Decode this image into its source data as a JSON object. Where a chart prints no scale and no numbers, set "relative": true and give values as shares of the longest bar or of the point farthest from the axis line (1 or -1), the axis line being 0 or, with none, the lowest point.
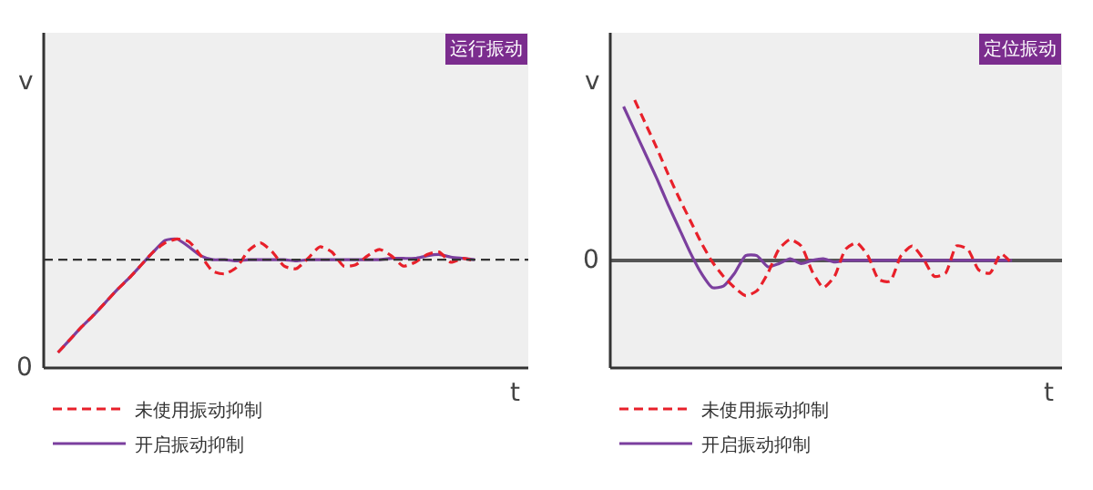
{
  "chart_data": [
    {
      "type": "line",
      "title": "运行振动",
      "xlabel": "t",
      "ylabel": "v",
      "annotations": [
        "0"
      ],
      "relative": true,
      "legend": "bottom",
      "grid": false,
      "marker": "none",
      "categories": [
        null,
        null,
        null,
        null,
        null,
        null,
        null,
        null,
        null,
        null,
        null,
        null,
        null,
        null,
        null,
        null,
        null,
        null,
        null,
        null,
        null,
        null,
        null,
        null,
        null,
        null,
        null,
        null,
        null,
        null,
        null,
        null,
        null,
        null,
        null,
        null
      ],
      "ref_lines": [
        {
          "axis": "y",
          "value": 0.84,
          "color": "#333333",
          "line_style": "dashed"
        }
      ],
      "series": [
        {
          "name": "未使用振动抑制",
          "color": "#e8202a",
          "line_style": "dashed",
          "values": [
            0.12,
            0.22,
            0.32,
            0.41,
            0.51,
            0.61,
            0.7,
            0.8,
            0.9,
            0.97,
            1.0,
            0.98,
            0.87,
            0.75,
            0.73,
            0.78,
            0.91,
            0.97,
            0.9,
            0.79,
            0.77,
            0.85,
            0.94,
            0.9,
            0.79,
            0.8,
            0.87,
            0.92,
            0.87,
            0.79,
            0.82,
            0.88,
            0.9,
            0.82,
            0.85,
            0.83
          ]
        },
        {
          "name": "开启振动抑制",
          "color": "#7b3f9e",
          "line_style": "solid",
          "values": [
            0.12,
            0.22,
            0.32,
            0.41,
            0.51,
            0.61,
            0.7,
            0.8,
            0.9,
            0.99,
            1.0,
            0.94,
            0.87,
            0.84,
            0.84,
            0.83,
            0.84,
            0.84,
            0.84,
            0.84,
            0.83,
            0.84,
            0.84,
            0.84,
            0.84,
            0.84,
            0.84,
            0.84,
            0.85,
            0.85,
            0.85,
            0.87,
            0.88,
            0.86,
            0.85,
            0.84
          ]
        }
      ]
    },
    {
      "type": "line",
      "title": "定位振动",
      "xlabel": "t",
      "ylabel": "v",
      "annotations": [
        "0"
      ],
      "relative": true,
      "legend": "bottom",
      "grid": false,
      "marker": "none",
      "categories": [
        null,
        null,
        null,
        null,
        null,
        null,
        null,
        null,
        null,
        null,
        null,
        null,
        null,
        null,
        null,
        null,
        null,
        null,
        null,
        null,
        null,
        null,
        null,
        null,
        null,
        null,
        null,
        null,
        null,
        null,
        null,
        null,
        null,
        null,
        null,
        null
      ],
      "series": [
        {
          "name": "未使用振动抑制",
          "color": "#e8202a",
          "line_style": "dashed",
          "values": [
            null,
            1.0,
            0.85,
            0.7,
            0.54,
            0.39,
            0.25,
            0.11,
            -0.01,
            -0.1,
            -0.17,
            -0.22,
            -0.19,
            -0.08,
            0.07,
            0.13,
            0.09,
            -0.07,
            -0.17,
            -0.1,
            0.07,
            0.11,
            0.03,
            -0.12,
            -0.13,
            0.03,
            0.09,
            0.01,
            -0.1,
            -0.08,
            0.09,
            0.07,
            -0.06,
            -0.08,
            0.04,
            -0.02
          ]
        },
        {
          "name": "开启振动抑制",
          "color": "#7b3f9e",
          "line_style": "solid",
          "values": [
            0.96,
            0.81,
            0.66,
            0.51,
            0.35,
            0.2,
            0.05,
            -0.08,
            -0.17,
            -0.16,
            -0.08,
            0.03,
            0.03,
            -0.04,
            -0.02,
            0.01,
            -0.02,
            0.0,
            0.01,
            -0.01,
            0.0,
            0.0,
            0.0,
            0.0,
            0.0,
            0.0,
            0.0,
            0.0,
            0.0,
            0.0,
            0.0,
            0.0,
            0.0,
            0.0,
            0.0,
            0.0
          ]
        }
      ]
    }
  ]
}
